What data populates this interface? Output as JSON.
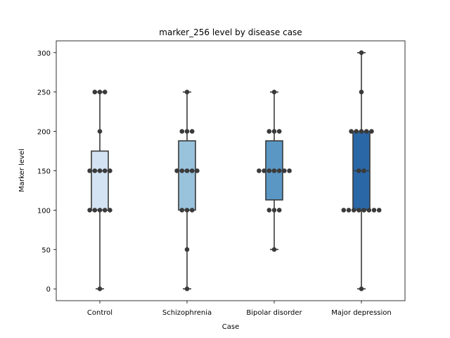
{
  "chart_data": {
    "type": "box",
    "title": "marker_256 level by disease case",
    "xlabel": "Case",
    "ylabel": "Marker level",
    "ylim": [
      -15,
      315
    ],
    "yticks": [
      0,
      50,
      100,
      150,
      200,
      250,
      300
    ],
    "grid": false,
    "colors": {
      "Control": "#d3e3f3",
      "Schizophrenia": "#99c2dc",
      "Bipolar disorder": "#5a97c5",
      "Major depression": "#2a67a6",
      "line": "#3a3a3a",
      "point": "#3a3a3a"
    },
    "categories": [
      "Control",
      "Schizophrenia",
      "Bipolar disorder",
      "Major depression"
    ],
    "boxes": [
      {
        "category": "Control",
        "whisker_low": 0,
        "q1": 100,
        "median": 150,
        "q3": 175,
        "whisker_high": 250
      },
      {
        "category": "Schizophrenia",
        "whisker_low": 0,
        "q1": 100,
        "median": 150,
        "q3": 188,
        "whisker_high": 250
      },
      {
        "category": "Bipolar disorder",
        "whisker_low": 50,
        "q1": 113,
        "median": 150,
        "q3": 188,
        "whisker_high": 250
      },
      {
        "category": "Major depression",
        "whisker_low": 0,
        "q1": 100,
        "median": 150,
        "q3": 200,
        "whisker_high": 300
      }
    ],
    "points": [
      {
        "category": "Control",
        "values": [
          250,
          250,
          250,
          200,
          150,
          150,
          150,
          150,
          150,
          100,
          100,
          100,
          100,
          100,
          0
        ]
      },
      {
        "category": "Schizophrenia",
        "values": [
          250,
          200,
          200,
          200,
          150,
          150,
          150,
          150,
          150,
          100,
          100,
          100,
          50,
          0
        ]
      },
      {
        "category": "Bipolar disorder",
        "values": [
          250,
          200,
          200,
          200,
          150,
          150,
          150,
          150,
          150,
          150,
          150,
          100,
          100,
          100,
          50
        ]
      },
      {
        "category": "Major depression",
        "values": [
          300,
          250,
          200,
          200,
          200,
          200,
          200,
          150,
          150,
          100,
          100,
          100,
          100,
          100,
          100,
          100,
          100,
          0
        ]
      }
    ]
  }
}
